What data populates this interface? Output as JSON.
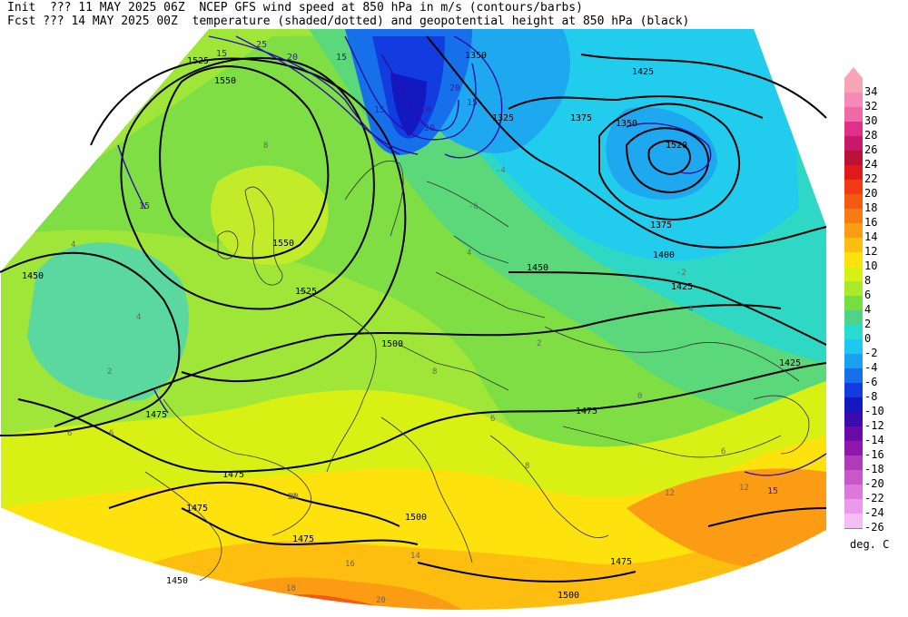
{
  "header": {
    "line1": "Init  ??? 11 MAY 2025 06Z  NCEP GFS wind speed at 850 hPa in m/s (contours/barbs)",
    "line2": "Fcst ??? 14 MAY 2025 00Z  temperature (shaded/dotted) and geopotential height at 850 hPa (black)"
  },
  "legend": {
    "unit": "deg. C",
    "items": [
      {
        "label": "34",
        "color": "#f7a6b5"
      },
      {
        "label": "32",
        "color": "#f58ab8"
      },
      {
        "label": "30",
        "color": "#f06aa8"
      },
      {
        "label": "28",
        "color": "#e0308a"
      },
      {
        "label": "26",
        "color": "#c81868"
      },
      {
        "label": "24",
        "color": "#b81238"
      },
      {
        "label": "22",
        "color": "#e01a1a"
      },
      {
        "label": "20",
        "color": "#f23a14"
      },
      {
        "label": "18",
        "color": "#f55a12"
      },
      {
        "label": "16",
        "color": "#f87a14"
      },
      {
        "label": "14",
        "color": "#fb9c14"
      },
      {
        "label": "12",
        "color": "#fdbe10"
      },
      {
        "label": "10",
        "color": "#fde20e"
      },
      {
        "label": "8",
        "color": "#d8f014"
      },
      {
        "label": "6",
        "color": "#aaea2a"
      },
      {
        "label": "4",
        "color": "#78de40"
      },
      {
        "label": "2",
        "color": "#4ed48a"
      },
      {
        "label": "0",
        "color": "#28dcd0"
      },
      {
        "label": "-2",
        "color": "#1ec8f0"
      },
      {
        "label": "-4",
        "color": "#1aa0f0"
      },
      {
        "label": "-6",
        "color": "#1670ea"
      },
      {
        "label": "-8",
        "color": "#123ce0"
      },
      {
        "label": "-10",
        "color": "#1418c0"
      },
      {
        "label": "-12",
        "color": "#3a0cb0"
      },
      {
        "label": "-14",
        "color": "#6a0aa8"
      },
      {
        "label": "-16",
        "color": "#8e18ae"
      },
      {
        "label": "-18",
        "color": "#b03aba"
      },
      {
        "label": "-20",
        "color": "#c858c8"
      },
      {
        "label": "-22",
        "color": "#dc78dc"
      },
      {
        "label": "-24",
        "color": "#eb9aeb"
      },
      {
        "label": "-26",
        "color": "#f4bef4"
      }
    ]
  },
  "map": {
    "height_labels": [
      "1525",
      "1550",
      "1550",
      "1525",
      "1500",
      "1475",
      "1475",
      "1475",
      "1450",
      "1475",
      "1500",
      "1475",
      "1500",
      "1475",
      "1425",
      "1450",
      "1425",
      "1400",
      "1375",
      "1350",
      "1375",
      "1425",
      "1450",
      "1350",
      "1325",
      "1520"
    ],
    "wind_labels": [
      "15",
      "20",
      "15",
      "15",
      "20",
      "15",
      "10",
      "15",
      "15",
      "25",
      "20"
    ],
    "temp_labels": [
      "6",
      "4",
      "2",
      "4",
      "6",
      "8",
      "10",
      "12",
      "14",
      "16",
      "18",
      "20",
      "8",
      "6",
      "4",
      "2",
      "0",
      "-2",
      "-4",
      "-6",
      "4",
      "6",
      "8",
      "10",
      "12"
    ]
  }
}
